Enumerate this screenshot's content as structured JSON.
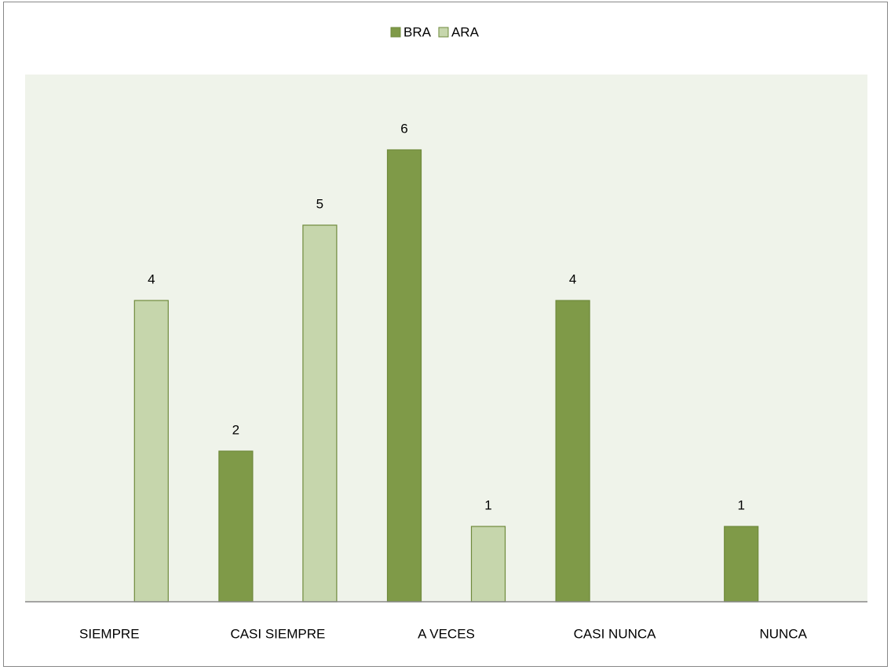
{
  "chart_data": {
    "type": "bar",
    "categories": [
      "SIEMPRE",
      "CASI SIEMPRE",
      "A VECES",
      "CASI NUNCA",
      "NUNCA"
    ],
    "series": [
      {
        "name": "BRA",
        "color": "#7f9a48",
        "values": [
          null,
          2,
          6,
          4,
          1
        ]
      },
      {
        "name": "ARA",
        "color": "#c6d6ac",
        "values": [
          4,
          5,
          1,
          null,
          null
        ]
      }
    ],
    "ylim": [
      0,
      7
    ],
    "legend": "top"
  }
}
